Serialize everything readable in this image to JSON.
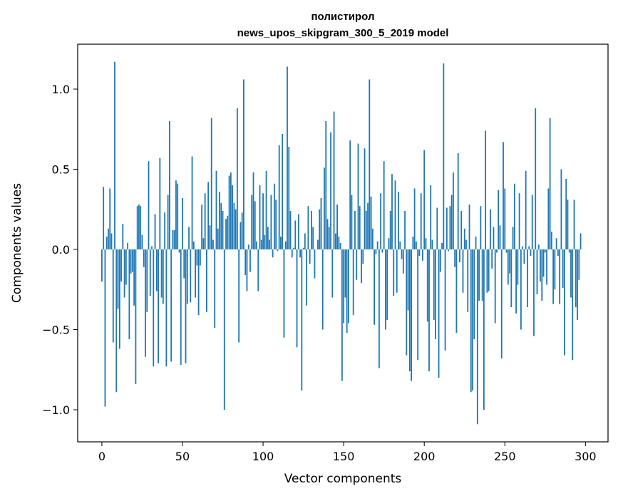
{
  "chart_data": {
    "type": "bar",
    "title": [
      "полистирол",
      "news_upos_skipgram_300_5_2019 model"
    ],
    "xlabel": "Vector components",
    "ylabel": "Components values",
    "xlim": [
      -15,
      314
    ],
    "ylim": [
      -1.2,
      1.28
    ],
    "xticks": [
      0,
      50,
      100,
      150,
      200,
      250,
      300
    ],
    "yticks": [
      -1.0,
      -0.5,
      0.0,
      0.5,
      1.0
    ],
    "ytick_labels": [
      "−1.0",
      "−0.5",
      "0.0",
      "0.5",
      "1.0"
    ],
    "bar_color": "#1f77b4",
    "grid": false,
    "legend": "none",
    "values": [
      -0.2,
      0.39,
      -0.98,
      0.08,
      0.13,
      0.38,
      0.1,
      -0.58,
      1.17,
      -0.89,
      -0.37,
      -0.62,
      -0.2,
      0.16,
      -0.3,
      -0.22,
      0.04,
      -0.56,
      -0.15,
      -0.14,
      -0.35,
      -0.84,
      0.27,
      0.28,
      0.27,
      0.09,
      -0.11,
      -0.67,
      -0.39,
      0.55,
      -0.29,
      0.02,
      -0.73,
      0.22,
      -0.26,
      -0.71,
      0.57,
      -0.3,
      -0.34,
      0.23,
      -0.73,
      0.34,
      0.8,
      -0.7,
      0.12,
      0.12,
      0.43,
      0.41,
      -0.02,
      -0.72,
      0.32,
      -0.18,
      -0.71,
      -0.34,
      0.14,
      -0.33,
      0.58,
      0.05,
      -0.3,
      -0.1,
      -0.41,
      -0.1,
      0.28,
      0.07,
      0.35,
      -0.39,
      0.42,
      0.15,
      0.82,
      0.06,
      -0.49,
      0.49,
      0.13,
      0.36,
      0.29,
      0.24,
      -1.0,
      0.19,
      0.21,
      0.46,
      0.48,
      0.4,
      0.29,
      0.25,
      0.88,
      -0.58,
      0.17,
      0.23,
      1.06,
      -0.16,
      -0.26,
      0.03,
      -0.14,
      0.34,
      0.48,
      0.3,
      0.05,
      -0.26,
      0.4,
      0.06,
      0.35,
      0.09,
      0.49,
      0.14,
      0.06,
      0.34,
      -0.05,
      0.41,
      0.31,
      -0.01,
      0.65,
      0.08,
      0.72,
      -0.55,
      0.05,
      1.14,
      0.64,
      0.24,
      -0.05,
      0.01,
      0.18,
      -0.61,
      0.22,
      -0.05,
      -0.88,
      0.01,
      0.1,
      -0.35,
      0.27,
      -0.09,
      0.24,
      0.14,
      -0.18,
      0.0,
      0.06,
      0.25,
      0.32,
      -0.5,
      0.51,
      0.8,
      0.19,
      0.14,
      0.73,
      -0.3,
      0.86,
      0.1,
      0.28,
      0.08,
      0.04,
      -0.82,
      -0.46,
      -0.3,
      -0.52,
      -0.46,
      0.68,
      0.34,
      -0.41,
      0.24,
      -0.19,
      0.66,
      0.27,
      -0.21,
      -0.09,
      0.63,
      0.24,
      0.29,
      1.06,
      0.33,
      0.13,
      -0.47,
      -0.03,
      0.05,
      -0.74,
      0.35,
      -0.02,
      0.55,
      -0.5,
      -0.44,
      0.07,
      0.24,
      0.47,
      -0.29,
      0.43,
      -0.27,
      0.36,
      0.05,
      -0.06,
      -0.15,
      0.24,
      -0.66,
      -0.38,
      -0.76,
      -0.82,
      0.08,
      0.38,
      0.05,
      -0.69,
      -0.04,
      0.35,
      -0.07,
      0.62,
      0.07,
      -0.45,
      -0.76,
      0.4,
      0.06,
      -0.44,
      -0.56,
      0.26,
      -0.8,
      -0.14,
      0.04,
      1.16,
      -0.63,
      0.26,
      -0.01,
      0.27,
      0.34,
      0.48,
      -0.11,
      -0.52,
      0.6,
      -0.08,
      0.24,
      -0.27,
      0.13,
      0.06,
      -0.39,
      0.28,
      -0.89,
      -0.88,
      -0.56,
      0.08,
      -1.09,
      -0.32,
      0.27,
      -0.32,
      -1.0,
      0.74,
      -0.27,
      -0.26,
      0.25,
      -0.12,
      0.14,
      -0.46,
      -0.02,
      0.37,
      0.15,
      -0.68,
      0.67,
      0.38,
      -0.02,
      -0.22,
      -0.15,
      -0.36,
      0.14,
      0.41,
      -0.4,
      -0.22,
      0.35,
      -0.5,
      0.02,
      -0.09,
      0.49,
      -0.36,
      0.02,
      -0.04,
      0.34,
      -0.54,
      0.88,
      -0.28,
      0.03,
      -0.2,
      -0.32,
      -0.17,
      -0.02,
      -0.22,
      0.38,
      0.82,
      0.11,
      -0.34,
      -0.25,
      0.07,
      -0.04,
      -0.34,
      0.5,
      -0.24,
      -0.66,
      0.44,
      0.31,
      -0.02,
      -0.3,
      -0.69,
      0.31,
      -0.36,
      -0.44,
      -0.19,
      0.1
    ]
  }
}
